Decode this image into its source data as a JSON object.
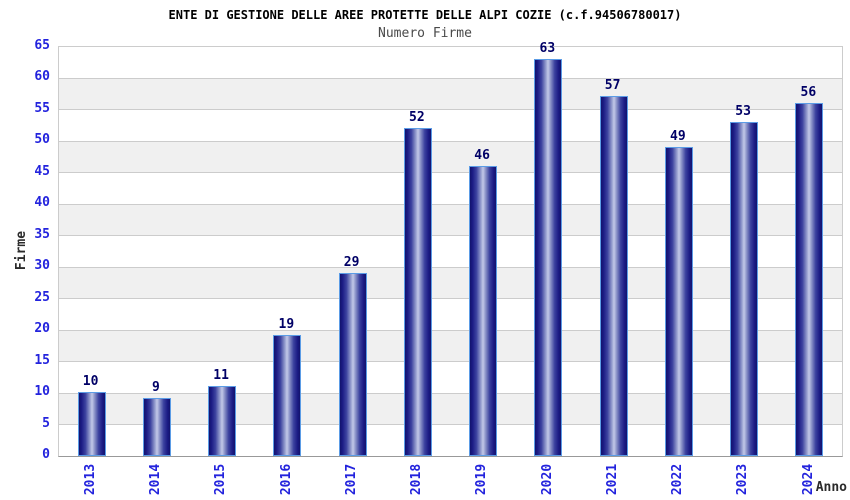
{
  "chart_data": {
    "type": "bar",
    "title": "ENTE DI GESTIONE DELLE AREE PROTETTE DELLE ALPI COZIE (c.f.94506780017)",
    "subtitle": "Numero Firme",
    "categories": [
      "2013",
      "2014",
      "2015",
      "2016",
      "2017",
      "2018",
      "2019",
      "2020",
      "2021",
      "2022",
      "2023",
      "2024"
    ],
    "values": [
      10,
      9,
      11,
      19,
      29,
      52,
      46,
      63,
      57,
      49,
      53,
      56
    ],
    "xlabel": "Anno",
    "ylabel": "Firme",
    "ylim": [
      0,
      65
    ],
    "yticks": [
      0,
      5,
      10,
      15,
      20,
      25,
      30,
      35,
      40,
      45,
      50,
      55,
      60,
      65
    ],
    "grid": "horizontal",
    "background_bands": "alternating white / light gray every 5 units",
    "legend": "none",
    "value_labels": "above bars"
  },
  "colors": {
    "bar_dark": "#13136e",
    "bar_light": "#c3c9e8",
    "bar_border": "#5b9ce6",
    "tick_label": "#2323dd",
    "value_label": "#000066",
    "title": "#000000",
    "subtitle": "#4a4a4a",
    "axis_title": "#2b2b2b",
    "band": "#f0f0f0",
    "grid": "#cccccc"
  }
}
